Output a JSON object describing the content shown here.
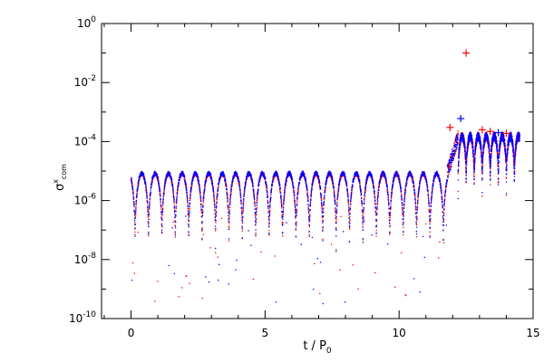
{
  "chart_data": {
    "type": "scatter",
    "title": "",
    "xlabel": "t / P",
    "xlabel_subscript": "0",
    "ylabel": "σ",
    "ylabel_superscript": "x",
    "ylabel_subscript": "com",
    "xlim": [
      -1.1,
      15
    ],
    "ylim": [
      1e-10,
      1
    ],
    "y_scale": "log",
    "grid": false,
    "legend": "none",
    "x_ticks": [
      0,
      5,
      10,
      15
    ],
    "x_tick_labels": [
      "0",
      "5",
      "10",
      "15"
    ],
    "y_ticks": [
      1e-10,
      1e-08,
      1e-06,
      0.0001,
      0.01,
      1
    ],
    "y_tick_labels": [
      {
        "base": "10",
        "exp": "-10"
      },
      {
        "base": "10",
        "exp": "-8"
      },
      {
        "base": "10",
        "exp": "-6"
      },
      {
        "base": "10",
        "exp": "-4"
      },
      {
        "base": "10",
        "exp": "-2"
      },
      {
        "base": "10",
        "exp": "0"
      }
    ],
    "series": [
      {
        "color": "#ff0000",
        "marker": "dot",
        "pattern": {
          "phase1_t": [
            0,
            11.8
          ],
          "phase1_peak": 9e-06,
          "phase2_t": [
            12.2,
            14.5
          ],
          "phase2_peak": 0.00015,
          "oscillation_period": 0.5
        }
      },
      {
        "color": "#0000ff",
        "marker": "dot",
        "pattern": {
          "phase1_t": [
            0,
            11.8
          ],
          "phase1_peak": 9e-06,
          "phase2_t": [
            12.2,
            14.5
          ],
          "phase2_peak": 0.00015,
          "oscillation_period": 0.5
        }
      }
    ],
    "outliers": [
      {
        "t": 12.5,
        "y": 0.1,
        "marker": "plus",
        "color": "#ff0000"
      },
      {
        "t": 11.9,
        "y": 0.0003,
        "marker": "plus",
        "color": "#ff0000"
      },
      {
        "t": 12.3,
        "y": 0.0006,
        "marker": "plus",
        "color": "#0000ff"
      },
      {
        "t": 13.1,
        "y": 0.00025,
        "marker": "plus",
        "color": "#ff0000"
      },
      {
        "t": 13.4,
        "y": 0.00022,
        "marker": "plus",
        "color": "#ff0000"
      },
      {
        "t": 13.7,
        "y": 0.0002,
        "marker": "plus",
        "color": "#0000ff"
      },
      {
        "t": 14.0,
        "y": 0.00019,
        "marker": "plus",
        "color": "#ff0000"
      }
    ]
  }
}
